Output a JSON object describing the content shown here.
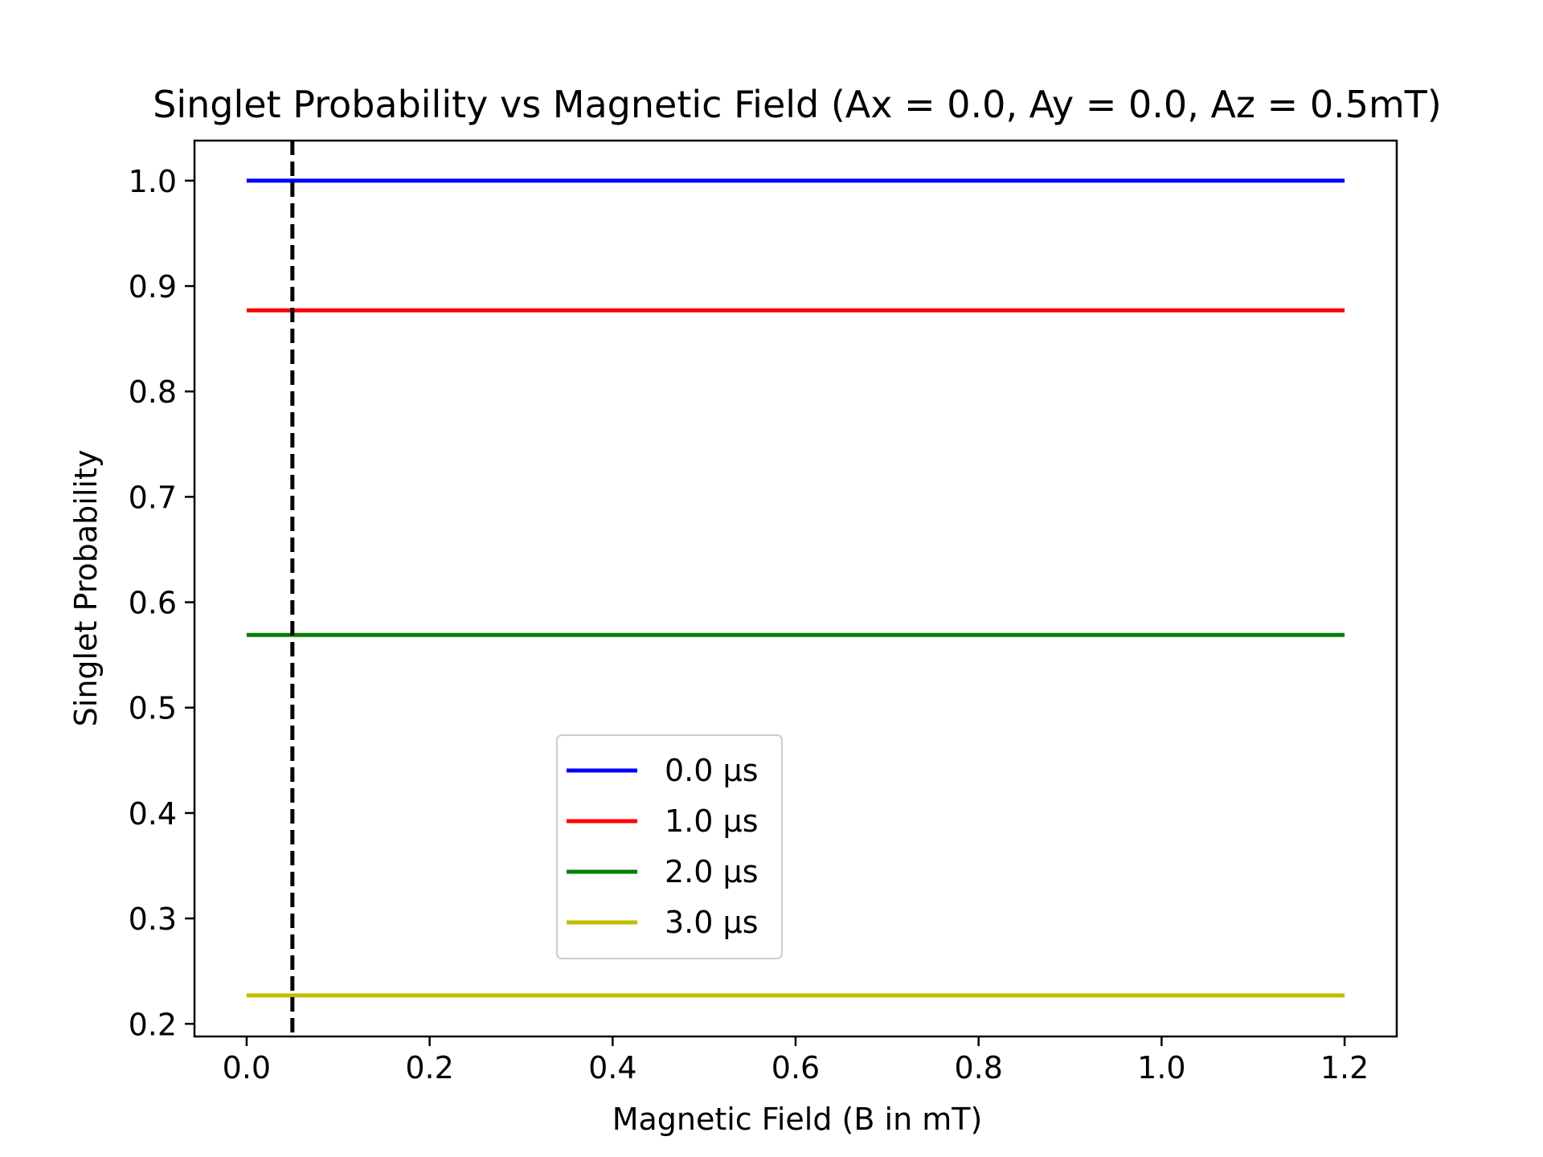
{
  "chart_data": {
    "type": "line",
    "title": "Singlet Probability vs Magnetic Field (Ax = 0.0, Ay = 0.0, Az = 0.5mT)",
    "xlabel": "Magnetic Field (B in mT)",
    "ylabel": "Singlet Probability",
    "xlim": [
      -0.057,
      1.257
    ],
    "ylim": [
      0.188,
      1.038
    ],
    "xticks": [
      0.0,
      0.2,
      0.4,
      0.6,
      0.8,
      1.0,
      1.2
    ],
    "xtick_labels": [
      "0.0",
      "0.2",
      "0.4",
      "0.6",
      "0.8",
      "1.0",
      "1.2"
    ],
    "yticks": [
      0.2,
      0.3,
      0.4,
      0.5,
      0.6,
      0.7,
      0.8,
      0.9,
      1.0
    ],
    "ytick_labels": [
      "0.2",
      "0.3",
      "0.4",
      "0.5",
      "0.6",
      "0.7",
      "0.8",
      "0.9",
      "1.0"
    ],
    "grid": false,
    "legend_position": "lower-center",
    "series": [
      {
        "name": "0.0 µs",
        "color": "#0000ff",
        "x": [
          0.0,
          1.2
        ],
        "y": [
          1.0,
          1.0
        ]
      },
      {
        "name": "1.0 µs",
        "color": "#ff0000",
        "x": [
          0.0,
          1.2
        ],
        "y": [
          0.877,
          0.877
        ]
      },
      {
        "name": "2.0 µs",
        "color": "#008000",
        "x": [
          0.0,
          1.2
        ],
        "y": [
          0.569,
          0.569
        ]
      },
      {
        "name": "3.0 µs",
        "color": "#bfbf00",
        "x": [
          0.0,
          1.2
        ],
        "y": [
          0.227,
          0.227
        ]
      }
    ],
    "vline": {
      "x": 0.05,
      "color": "#000000",
      "style": "dashed"
    }
  }
}
